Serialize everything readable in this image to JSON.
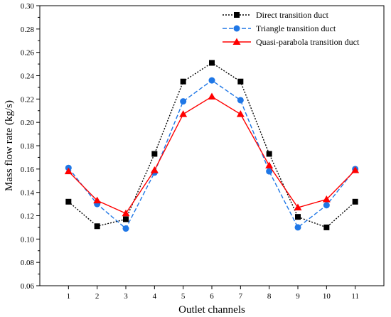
{
  "chart_data": {
    "type": "line",
    "title": "",
    "xlabel": "Outlet channels",
    "ylabel": "Mass flow rate (kg/s)",
    "x": [
      1,
      2,
      3,
      4,
      5,
      6,
      7,
      8,
      9,
      10,
      11
    ],
    "xlim": [
      0,
      12
    ],
    "ylim": [
      0.06,
      0.3
    ],
    "yticks": [
      "0.06",
      "0.08",
      "0.10",
      "0.12",
      "0.14",
      "0.16",
      "0.18",
      "0.20",
      "0.22",
      "0.24",
      "0.26",
      "0.28",
      "0.30"
    ],
    "xticks": [
      "1",
      "2",
      "3",
      "4",
      "5",
      "6",
      "7",
      "8",
      "9",
      "10",
      "11"
    ],
    "grid": false,
    "legend_position": "top-right",
    "series": [
      {
        "name": "Direct transition duct",
        "color": "#000000",
        "marker": "square",
        "line_style": "dotted",
        "values": [
          0.132,
          0.111,
          0.117,
          0.173,
          0.235,
          0.251,
          0.235,
          0.173,
          0.119,
          0.11,
          0.132
        ]
      },
      {
        "name": "Triangle transition duct",
        "color": "#1f77e6",
        "marker": "circle",
        "line_style": "dashed",
        "values": [
          0.161,
          0.13,
          0.109,
          0.157,
          0.218,
          0.236,
          0.219,
          0.158,
          0.11,
          0.129,
          0.16
        ]
      },
      {
        "name": "Quasi-parabola transition duct",
        "color": "#ff0000",
        "marker": "triangle",
        "line_style": "solid",
        "values": [
          0.158,
          0.133,
          0.122,
          0.159,
          0.207,
          0.222,
          0.207,
          0.163,
          0.127,
          0.134,
          0.159
        ]
      }
    ]
  }
}
